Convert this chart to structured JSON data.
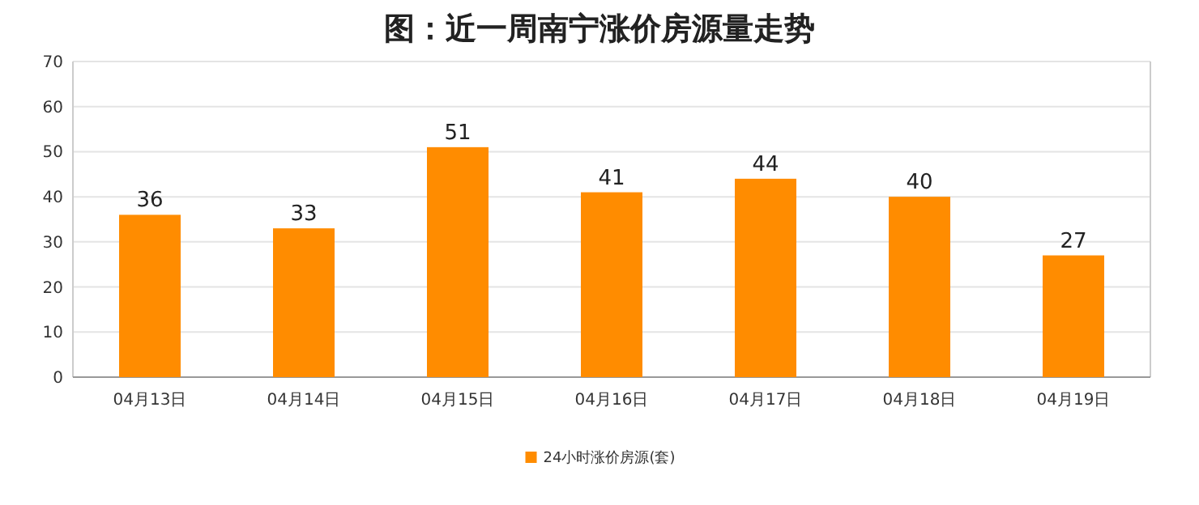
{
  "chart_data": {
    "type": "bar",
    "title": "图：近一周南宁涨价房源量走势",
    "categories": [
      "04月13日",
      "04月14日",
      "04月15日",
      "04月16日",
      "04月17日",
      "04月18日",
      "04月19日"
    ],
    "series": [
      {
        "name": "24小时涨价房源(套)",
        "color": "#ff8c00",
        "values": [
          36,
          33,
          51,
          41,
          44,
          40,
          27
        ]
      }
    ],
    "ylim": [
      0,
      70
    ],
    "yticks": [
      0,
      10,
      20,
      30,
      40,
      50,
      60,
      70
    ],
    "grid": "y",
    "legend": "bottom",
    "data_labels": true
  }
}
